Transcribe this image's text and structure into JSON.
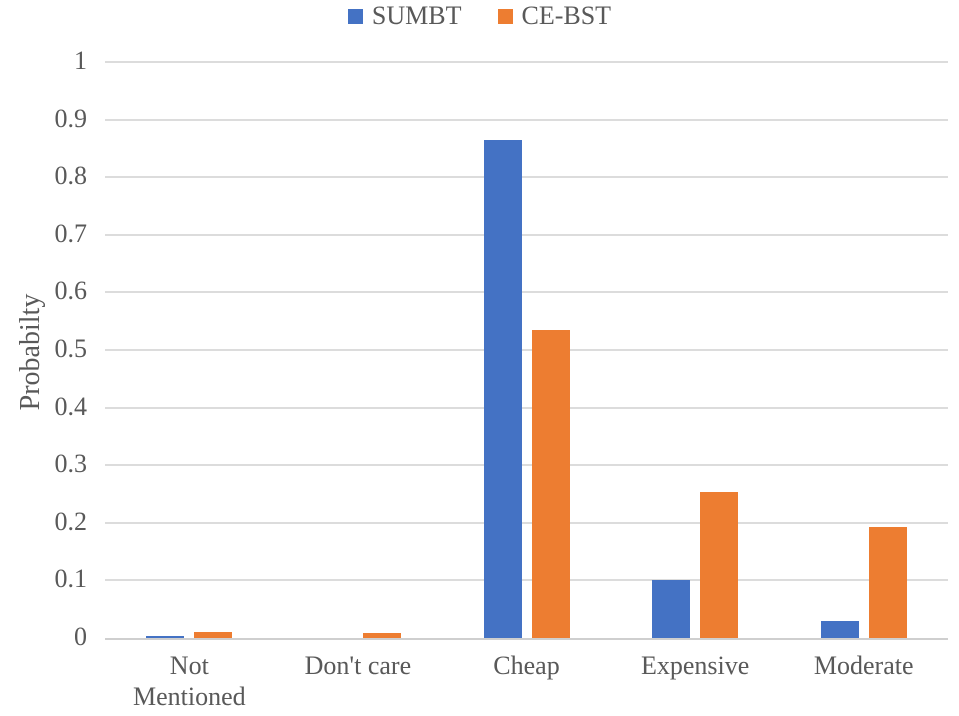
{
  "chart_data": {
    "type": "bar",
    "title": "",
    "xlabel": "",
    "ylabel": "Probabilty",
    "ylim": [
      0,
      1
    ],
    "ytick_step": 0.1,
    "yticks": [
      "1",
      "0.9",
      "0.8",
      "0.7",
      "0.6",
      "0.5",
      "0.4",
      "0.3",
      "0.2",
      "0.1",
      "0"
    ],
    "categories": [
      "Not Mentioned",
      "Don't care",
      "Cheap",
      "Expensive",
      "Moderate"
    ],
    "category_labels": [
      "Not\nMentioned",
      "Don't care",
      "Cheap",
      "Expensive",
      "Moderate"
    ],
    "series": [
      {
        "name": "SUMBT",
        "color": "#4472C4",
        "values": [
          0.003,
          0.0,
          0.865,
          0.1,
          0.03
        ]
      },
      {
        "name": "CE-BST",
        "color": "#ED7D31",
        "values": [
          0.01,
          0.008,
          0.535,
          0.253,
          0.192
        ]
      }
    ],
    "grid": true,
    "legend_position": "top-center",
    "colors": {
      "grid": "#dcdcdc",
      "axis": "#cfcfcf",
      "text": "#595959"
    }
  }
}
